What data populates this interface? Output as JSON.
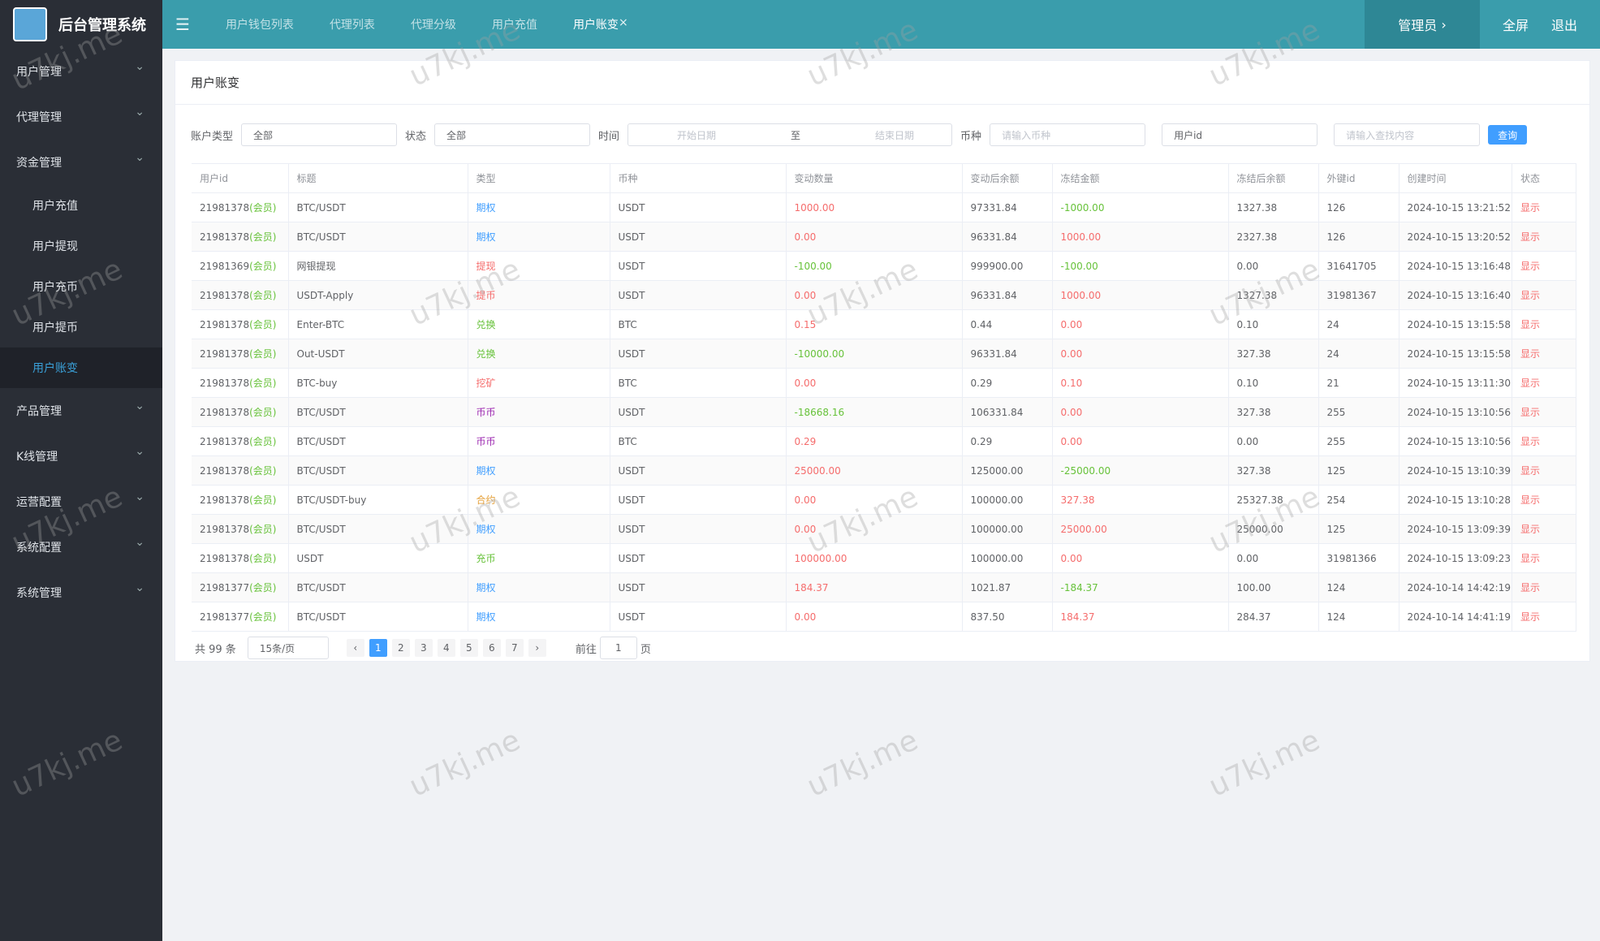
{
  "app_title": "后台管理系统",
  "watermark": "u7kj.me",
  "sidebar": {
    "menu": [
      {
        "label": "用户管理"
      },
      {
        "label": "代理管理"
      },
      {
        "label": "资金管理",
        "children": [
          "用户充值",
          "用户提现",
          "用户充币",
          "用户提币",
          "用户账变"
        ],
        "active_child": 4
      },
      {
        "label": "产品管理"
      },
      {
        "label": "K线管理"
      },
      {
        "label": "运营配置"
      },
      {
        "label": "系统配置"
      },
      {
        "label": "系统管理"
      }
    ]
  },
  "tabs": [
    "用户钱包列表",
    "代理列表",
    "代理分级",
    "用户充值",
    "用户账变"
  ],
  "active_tab": 4,
  "header_right": {
    "admin": "管理员",
    "fullscreen": "全屏",
    "logout": "退出"
  },
  "card_title": "用户账变",
  "filters": {
    "account_type_label": "账户类型",
    "account_type_value": "全部",
    "status_label": "状态",
    "status_value": "全部",
    "time_label": "时间",
    "start_placeholder": "开始日期",
    "range_separator": "至",
    "end_placeholder": "结束日期",
    "currency_label": "币种",
    "currency_placeholder": "请输入币种",
    "field_select": "用户id",
    "search_placeholder": "请输入查找内容",
    "search_button": "查询"
  },
  "table": {
    "columns": [
      "用户id",
      "标题",
      "类型",
      "币种",
      "变动数量",
      "变动后余额",
      "冻结金额",
      "冻结后余额",
      "外键id",
      "创建时间",
      "状态"
    ],
    "rows": [
      {
        "user_id": "21981378",
        "user_tag": "(会员)",
        "title": "BTC/USDT",
        "type": "期权",
        "type_color": "#409eff",
        "currency": "USDT",
        "amount": "1000.00",
        "balance": "97331.84",
        "frozen": "-1000.00",
        "frozen_after": "1327.38",
        "key_id": "126",
        "created": "2024-10-15 13:21:52",
        "status": "显示"
      },
      {
        "user_id": "21981378",
        "user_tag": "(会员)",
        "title": "BTC/USDT",
        "type": "期权",
        "type_color": "#409eff",
        "currency": "USDT",
        "amount": "0.00",
        "balance": "96331.84",
        "frozen": "1000.00",
        "frozen_after": "2327.38",
        "key_id": "126",
        "created": "2024-10-15 13:20:52",
        "status": "显示"
      },
      {
        "user_id": "21981369",
        "user_tag": "(会员)",
        "title": "网银提现",
        "type": "提现",
        "type_color": "#f56c6c",
        "currency": "USDT",
        "amount": "-100.00",
        "balance": "999900.00",
        "frozen": "-100.00",
        "frozen_after": "0.00",
        "key_id": "31641705",
        "created": "2024-10-15 13:16:48",
        "status": "显示"
      },
      {
        "user_id": "21981378",
        "user_tag": "(会员)",
        "title": "USDT-Apply",
        "type": "提币",
        "type_color": "#f56c6c",
        "currency": "USDT",
        "amount": "0.00",
        "balance": "96331.84",
        "frozen": "1000.00",
        "frozen_after": "1327.38",
        "key_id": "31981367",
        "created": "2024-10-15 13:16:40",
        "status": "显示"
      },
      {
        "user_id": "21981378",
        "user_tag": "(会员)",
        "title": "Enter-BTC",
        "type": "兑换",
        "type_color": "#67c23a",
        "currency": "BTC",
        "amount": "0.15",
        "balance": "0.44",
        "frozen": "0.00",
        "frozen_after": "0.10",
        "key_id": "24",
        "created": "2024-10-15 13:15:58",
        "status": "显示"
      },
      {
        "user_id": "21981378",
        "user_tag": "(会员)",
        "title": "Out-USDT",
        "type": "兑换",
        "type_color": "#67c23a",
        "currency": "USDT",
        "amount": "-10000.00",
        "balance": "96331.84",
        "frozen": "0.00",
        "frozen_after": "327.38",
        "key_id": "24",
        "created": "2024-10-15 13:15:58",
        "status": "显示"
      },
      {
        "user_id": "21981378",
        "user_tag": "(会员)",
        "title": "BTC-buy",
        "type": "挖矿",
        "type_color": "#f56c6c",
        "currency": "BTC",
        "amount": "0.00",
        "balance": "0.29",
        "frozen": "0.10",
        "frozen_after": "0.10",
        "key_id": "21",
        "created": "2024-10-15 13:11:30",
        "status": "显示"
      },
      {
        "user_id": "21981378",
        "user_tag": "(会员)",
        "title": "BTC/USDT",
        "type": "币币",
        "type_color": "#9c27b0",
        "currency": "USDT",
        "amount": "-18668.16",
        "balance": "106331.84",
        "frozen": "0.00",
        "frozen_after": "327.38",
        "key_id": "255",
        "created": "2024-10-15 13:10:56",
        "status": "显示"
      },
      {
        "user_id": "21981378",
        "user_tag": "(会员)",
        "title": "BTC/USDT",
        "type": "币币",
        "type_color": "#9c27b0",
        "currency": "BTC",
        "amount": "0.29",
        "balance": "0.29",
        "frozen": "0.00",
        "frozen_after": "0.00",
        "key_id": "255",
        "created": "2024-10-15 13:10:56",
        "status": "显示"
      },
      {
        "user_id": "21981378",
        "user_tag": "(会员)",
        "title": "BTC/USDT",
        "type": "期权",
        "type_color": "#409eff",
        "currency": "USDT",
        "amount": "25000.00",
        "balance": "125000.00",
        "frozen": "-25000.00",
        "frozen_after": "327.38",
        "key_id": "125",
        "created": "2024-10-15 13:10:39",
        "status": "显示"
      },
      {
        "user_id": "21981378",
        "user_tag": "(会员)",
        "title": "BTC/USDT-buy",
        "type": "合约",
        "type_color": "#e6a23c",
        "currency": "USDT",
        "amount": "0.00",
        "balance": "100000.00",
        "frozen": "327.38",
        "frozen_after": "25327.38",
        "key_id": "254",
        "created": "2024-10-15 13:10:28",
        "status": "显示"
      },
      {
        "user_id": "21981378",
        "user_tag": "(会员)",
        "title": "BTC/USDT",
        "type": "期权",
        "type_color": "#409eff",
        "currency": "USDT",
        "amount": "0.00",
        "balance": "100000.00",
        "frozen": "25000.00",
        "frozen_after": "25000.00",
        "key_id": "125",
        "created": "2024-10-15 13:09:39",
        "status": "显示"
      },
      {
        "user_id": "21981378",
        "user_tag": "(会员)",
        "title": "USDT",
        "type": "充币",
        "type_color": "#67c23a",
        "currency": "USDT",
        "amount": "100000.00",
        "balance": "100000.00",
        "frozen": "0.00",
        "frozen_after": "0.00",
        "key_id": "31981366",
        "created": "2024-10-15 13:09:23",
        "status": "显示"
      },
      {
        "user_id": "21981377",
        "user_tag": "(会员)",
        "title": "BTC/USDT",
        "type": "期权",
        "type_color": "#409eff",
        "currency": "USDT",
        "amount": "184.37",
        "balance": "1021.87",
        "frozen": "-184.37",
        "frozen_after": "100.00",
        "key_id": "124",
        "created": "2024-10-14 14:42:19",
        "status": "显示"
      },
      {
        "user_id": "21981377",
        "user_tag": "(会员)",
        "title": "BTC/USDT",
        "type": "期权",
        "type_color": "#409eff",
        "currency": "USDT",
        "amount": "0.00",
        "balance": "837.50",
        "frozen": "184.37",
        "frozen_after": "284.37",
        "key_id": "124",
        "created": "2024-10-14 14:41:19",
        "status": "显示"
      }
    ]
  },
  "pagination": {
    "total": "共 99 条",
    "page_size": "15条/页",
    "pages": [
      "1",
      "2",
      "3",
      "4",
      "5",
      "6",
      "7"
    ],
    "current": 0,
    "goto_label": "前往",
    "goto_value": "1",
    "goto_suffix": "页"
  }
}
